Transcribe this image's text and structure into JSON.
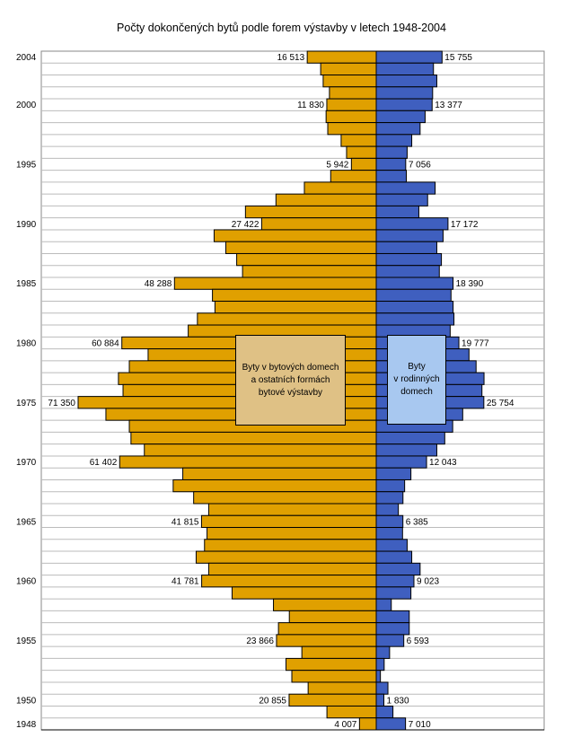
{
  "chart_data": {
    "type": "bar",
    "orientation": "horizontal-diverging",
    "title": "Počty dokončených bytů podle forem výstavby v letech 1948-2004",
    "years": [
      2004,
      2003,
      2002,
      2001,
      2000,
      1999,
      1998,
      1997,
      1996,
      1995,
      1994,
      1993,
      1992,
      1991,
      1990,
      1989,
      1988,
      1987,
      1986,
      1985,
      1984,
      1983,
      1982,
      1981,
      1980,
      1979,
      1978,
      1977,
      1976,
      1975,
      1974,
      1973,
      1972,
      1971,
      1970,
      1969,
      1968,
      1967,
      1966,
      1965,
      1964,
      1963,
      1962,
      1961,
      1960,
      1959,
      1958,
      1957,
      1956,
      1955,
      1954,
      1953,
      1952,
      1951,
      1950,
      1949,
      1948
    ],
    "year_tick_labels": [
      "2004",
      "2000",
      "1995",
      "1990",
      "1985",
      "1980",
      "1975",
      "1970",
      "1965",
      "1960",
      "1955",
      "1950",
      "1948"
    ],
    "series": [
      {
        "name": "Byty v bytových domech a ostatních formách bytové výstavby",
        "side": "left",
        "color": "#e0a000",
        "values": [
          16513,
          13300,
          12700,
          11200,
          11830,
          12000,
          11600,
          8400,
          7100,
          5942,
          10900,
          17200,
          24000,
          31300,
          27422,
          38800,
          36000,
          33400,
          32000,
          48288,
          39200,
          38600,
          42800,
          45000,
          60884,
          54600,
          59100,
          61700,
          60600,
          71350,
          64700,
          59100,
          58700,
          55500,
          61402,
          46300,
          48600,
          43700,
          40100,
          41815,
          40500,
          41100,
          43100,
          40100,
          41781,
          34500,
          24600,
          20800,
          23400,
          23866,
          17800,
          21600,
          20200,
          16300,
          20855,
          11800,
          4007
        ]
      },
      {
        "name": "Byty v rodinných domech",
        "side": "right",
        "color": "#3f5fbf",
        "values": [
          15755,
          13700,
          14500,
          13500,
          13377,
          11700,
          10500,
          8500,
          7400,
          7056,
          7200,
          14100,
          12300,
          10200,
          17172,
          16000,
          14500,
          15600,
          15100,
          18390,
          17900,
          18400,
          18600,
          17700,
          19777,
          22200,
          23900,
          25800,
          25300,
          25754,
          20700,
          18300,
          16400,
          14500,
          12043,
          8300,
          6800,
          6400,
          5300,
          6385,
          6300,
          7400,
          8500,
          10500,
          9023,
          8300,
          3600,
          7900,
          7900,
          6593,
          3200,
          1900,
          1000,
          2800,
          1830,
          4000,
          7010
        ]
      }
    ],
    "labeled_values": {
      "left": {
        "2004": "16 513",
        "2000": "11 830",
        "1995": "5 942",
        "1990": "27 422",
        "1985": "48 288",
        "1980": "60 884",
        "1975": "71 350",
        "1970": "61 402",
        "1965": "41 815",
        "1960": "41 781",
        "1955": "23 866",
        "1950": "20 855",
        "1948": "4 007"
      },
      "right": {
        "2004": "15 755",
        "2000": "13 377",
        "1995": "7 056",
        "1990": "17 172",
        "1985": "18 390",
        "1980": "19 777",
        "1975": "25 754",
        "1970": "12 043",
        "1965": "6 385",
        "1960": "9 023",
        "1955": "6 593",
        "1950": "1 830",
        "1948": "7 010"
      }
    },
    "legend": {
      "left": "Byty v bytových domech\na ostatních formách\nbytové výstavby",
      "right": "Byty\nv rodinných\ndomech",
      "left_color": "#dfc185",
      "right_color": "#a8c8f0"
    },
    "grid": true
  }
}
